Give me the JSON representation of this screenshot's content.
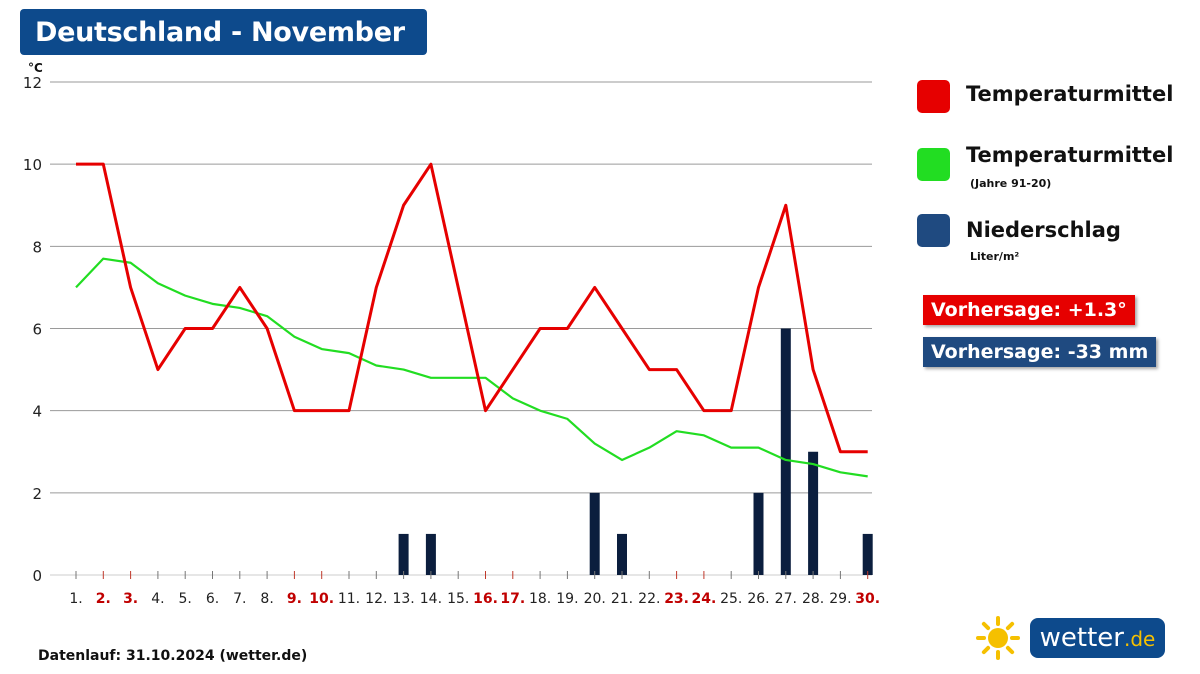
{
  "title": "Deutschland - November",
  "colors": {
    "temp": "#e60000",
    "normal": "#22dd22",
    "precip": "#0b1e3e",
    "title_bg": "#0d4a8c",
    "vorher_temp_bg": "#e60000",
    "vorher_precip_bg": "#1f4a80",
    "sun": "#f5c000"
  },
  "legend": {
    "temp_label": "Temperaturmittel",
    "normal_label": "Temperaturmittel",
    "normal_sub": "(Jahre 91-20)",
    "precip_label": "Niederschlag",
    "precip_sub": "Liter/m²"
  },
  "badges": {
    "temp": "Vorhersage: +1.3°",
    "precip": "Vorhersage: -33 mm"
  },
  "footer": "Datenlauf: 31.10.2024 (wetter.de)",
  "logo": {
    "name": "wetter",
    "tld": ".de",
    "icon": "sun-icon"
  },
  "chart_data": {
    "type": "line",
    "ylabel": "°C",
    "ylim": [
      0,
      12
    ],
    "yticks": [
      0,
      2,
      4,
      6,
      8,
      10,
      12
    ],
    "grid": true,
    "categories": [
      "1.",
      "2.",
      "3.",
      "4.",
      "5.",
      "6.",
      "7.",
      "8.",
      "9.",
      "10.",
      "11.",
      "12.",
      "13.",
      "14.",
      "15.",
      "16.",
      "17.",
      "18.",
      "19.",
      "20.",
      "21.",
      "22.",
      "23.",
      "24.",
      "25.",
      "26.",
      "27.",
      "28.",
      "29.",
      "30."
    ],
    "weekend_days": [
      "2.",
      "3.",
      "9.",
      "10.",
      "16.",
      "17.",
      "23.",
      "24.",
      "30."
    ],
    "series": [
      {
        "name": "Temperaturmittel",
        "type": "line",
        "values": [
          10,
          10,
          7,
          5,
          6,
          6,
          7,
          6,
          4,
          4,
          4,
          7,
          9,
          10,
          7,
          4,
          5,
          6,
          6,
          7,
          6,
          5,
          5,
          4,
          4,
          7,
          9,
          5,
          3,
          3
        ]
      },
      {
        "name": "Temperaturmittel (Jahre 91-20)",
        "type": "line",
        "values": [
          7,
          7.7,
          7.6,
          7.1,
          6.8,
          6.6,
          6.5,
          6.3,
          5.8,
          5.5,
          5.4,
          5.1,
          5.0,
          4.8,
          4.8,
          4.8,
          4.3,
          4.0,
          3.8,
          3.2,
          2.8,
          3.1,
          3.5,
          3.4,
          3.1,
          3.1,
          2.8,
          2.7,
          2.5,
          2.4
        ]
      },
      {
        "name": "Niederschlag",
        "type": "bar",
        "values": [
          0,
          0,
          0,
          0,
          0,
          0,
          0,
          0,
          0,
          0,
          0,
          0,
          1,
          1,
          0,
          0,
          0,
          0,
          0,
          2,
          1,
          0,
          0,
          0,
          0,
          2,
          6,
          3,
          0,
          1
        ]
      }
    ]
  }
}
